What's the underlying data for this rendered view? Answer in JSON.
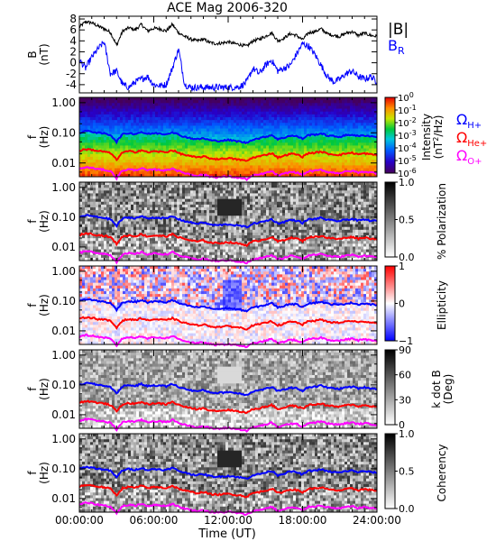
{
  "chart_data": {
    "title": "ACE Mag 2006-320",
    "xlabel": "Time (UT)",
    "x_ticks": [
      "00:00:00",
      "06:00:00",
      "12:00:00",
      "18:00:00",
      "24:00:00"
    ],
    "xlim_hours": [
      0,
      24
    ],
    "panels": [
      {
        "type": "line",
        "ylabel": [
          "B",
          "(nT)"
        ],
        "ylim": [
          -5.5,
          8.5
        ],
        "y_ticks": [
          "8",
          "6",
          "4",
          "2",
          "0",
          "-2",
          "-4"
        ],
        "legend": [
          {
            "text": "|B|",
            "color": "#000000"
          },
          {
            "text": "B",
            "sub": "R",
            "color": "#0000ff"
          }
        ],
        "series": [
          {
            "name": "|B|",
            "color": "#000000",
            "x": [
              0,
              0.5,
              1,
              1.5,
              2,
              2.5,
              3,
              3.5,
              4,
              4.5,
              5,
              5.5,
              6,
              6.5,
              7,
              7.5,
              8,
              8.5,
              9,
              9.5,
              10,
              10.5,
              11,
              11.5,
              12,
              12.5,
              13,
              13.5,
              14,
              14.5,
              15,
              15.5,
              16,
              16.5,
              17,
              17.5,
              18,
              18.5,
              19,
              19.5,
              20,
              20.5,
              21,
              21.5,
              22,
              22.5,
              23,
              23.5,
              24
            ],
            "y": [
              6.5,
              7.5,
              7.3,
              6.7,
              6.2,
              5.6,
              3.2,
              5.8,
              6.4,
              6.0,
              7.0,
              5.8,
              6.3,
              6.2,
              5.8,
              7.0,
              5.5,
              4.8,
              4.3,
              4.0,
              4.3,
              3.7,
              3.5,
              3.6,
              3.8,
              3.5,
              3.3,
              3.0,
              4.0,
              4.3,
              4.8,
              5.5,
              4.0,
              4.5,
              5.3,
              5.0,
              4.2,
              5.5,
              5.7,
              6.2,
              5.3,
              5.0,
              4.8,
              5.4,
              5.7,
              5.0,
              5.4,
              5.0,
              4.8
            ]
          },
          {
            "name": "B_R",
            "color": "#0000ff",
            "x": [
              0,
              0.5,
              1,
              1.5,
              2,
              2.5,
              3,
              3.5,
              4,
              4.5,
              5,
              5.5,
              6,
              6.5,
              7,
              7.5,
              8,
              8.5,
              9,
              9.5,
              10,
              10.5,
              11,
              11.5,
              12,
              12.5,
              13,
              13.5,
              14,
              14.5,
              15,
              15.5,
              16,
              16.5,
              17,
              17.5,
              18,
              18.5,
              19,
              19.5,
              20,
              20.5,
              21,
              21.5,
              22,
              22.5,
              23,
              23.5,
              24
            ],
            "y": [
              0.5,
              -1.0,
              1.0,
              2.5,
              3.8,
              -2.0,
              -1.5,
              -4.0,
              -4.5,
              -3.5,
              -3.0,
              -2.5,
              -4.0,
              -4.2,
              -4.0,
              -1.0,
              2.5,
              -4.0,
              -4.5,
              -4.5,
              -4.5,
              -4.5,
              -4.5,
              -4.5,
              -4.5,
              -4.5,
              -4.3,
              -3.5,
              -1.0,
              -2.0,
              -0.5,
              0.5,
              -1.5,
              -1.0,
              -0.5,
              1.5,
              3.5,
              3.0,
              1.5,
              -0.5,
              -2.5,
              -3.5,
              -3.0,
              -2.0,
              -1.5,
              -2.5,
              -3.0,
              -2.5,
              -3.5
            ]
          }
        ]
      },
      {
        "type": "heatmap",
        "ylabel": [
          "f",
          "(Hz)"
        ],
        "y_ticks": [
          "1.00",
          "0.10",
          "0.01"
        ],
        "colorbar_label": [
          "Intensity",
          "(nT",
          "2",
          "/Hz)"
        ],
        "colorbar_ticks": [
          {
            "base": "10",
            "exp": "0"
          },
          {
            "base": "10",
            "exp": "-1"
          },
          {
            "base": "10",
            "exp": "-2"
          },
          {
            "base": "10",
            "exp": "-3"
          },
          {
            "base": "10",
            "exp": "-4"
          },
          {
            "base": "10",
            "exp": "-5"
          },
          {
            "base": "10",
            "exp": "-6"
          }
        ],
        "legend": [
          {
            "text": "Ω",
            "sub": "H+",
            "color": "#0000ff"
          },
          {
            "text": "Ω",
            "sub": "He+",
            "color": "#ff0000"
          },
          {
            "text": "Ω",
            "sub": "O+",
            "color": "#ff00ff"
          }
        ],
        "colormap": "rainbow"
      },
      {
        "type": "heatmap",
        "ylabel": [
          "f",
          "(Hz)"
        ],
        "y_ticks": [
          "1.00",
          "0.10",
          "0.01"
        ],
        "colorbar_label": [
          "% Polarization"
        ],
        "colorbar_ticks": [
          "1.0",
          "0.5",
          "0.0"
        ],
        "colormap": "grayscale"
      },
      {
        "type": "heatmap",
        "ylabel": [
          "f",
          "(Hz)"
        ],
        "y_ticks": [
          "1.00",
          "0.10",
          "0.01"
        ],
        "colorbar_label": [
          "Ellipticity"
        ],
        "colorbar_ticks": [
          "1",
          "0",
          "−1"
        ],
        "colormap": "blue-white-red"
      },
      {
        "type": "heatmap",
        "ylabel": [
          "f",
          "(Hz)"
        ],
        "y_ticks": [
          "1.00",
          "0.10",
          "0.01"
        ],
        "colorbar_label": [
          "k dot B",
          "(Deg)"
        ],
        "colorbar_ticks": [
          "90",
          "60",
          "30",
          "0"
        ],
        "colormap": "grayscale"
      },
      {
        "type": "heatmap",
        "ylabel": [
          "f",
          "(Hz)"
        ],
        "y_ticks": [
          "1.00",
          "0.10",
          "0.01"
        ],
        "colorbar_label": [
          "Coherency"
        ],
        "colorbar_ticks": [
          "1.0",
          "0.5",
          "0.0"
        ],
        "colormap": "grayscale"
      }
    ],
    "gyrofrequency_lines": [
      {
        "name": "Ω H+",
        "color": "#0000ff",
        "x": [
          0,
          0.5,
          1,
          1.5,
          2,
          2.5,
          3,
          3.5,
          4,
          4.5,
          5,
          5.5,
          6,
          6.5,
          7,
          7.5,
          8,
          8.5,
          9,
          9.5,
          10,
          10.5,
          11,
          11.5,
          12,
          12.5,
          13,
          13.5,
          14,
          14.5,
          15,
          15.5,
          16,
          16.5,
          17,
          17.5,
          18,
          18.5,
          19,
          19.5,
          20,
          20.5,
          21,
          21.5,
          22,
          22.5,
          23,
          23.5,
          24
        ],
        "y": [
          0.1,
          0.115,
          0.11,
          0.1,
          0.095,
          0.085,
          0.05,
          0.09,
          0.098,
          0.092,
          0.107,
          0.09,
          0.097,
          0.095,
          0.09,
          0.107,
          0.085,
          0.074,
          0.066,
          0.061,
          0.066,
          0.057,
          0.054,
          0.055,
          0.058,
          0.054,
          0.051,
          0.046,
          0.061,
          0.066,
          0.074,
          0.085,
          0.061,
          0.069,
          0.081,
          0.077,
          0.064,
          0.085,
          0.087,
          0.095,
          0.081,
          0.077,
          0.074,
          0.083,
          0.087,
          0.077,
          0.083,
          0.077,
          0.074
        ]
      }
    ],
    "gyrofrequency_ratios": {
      "H+": 1,
      "He+": 0.25,
      "O+": 0.0625
    }
  }
}
